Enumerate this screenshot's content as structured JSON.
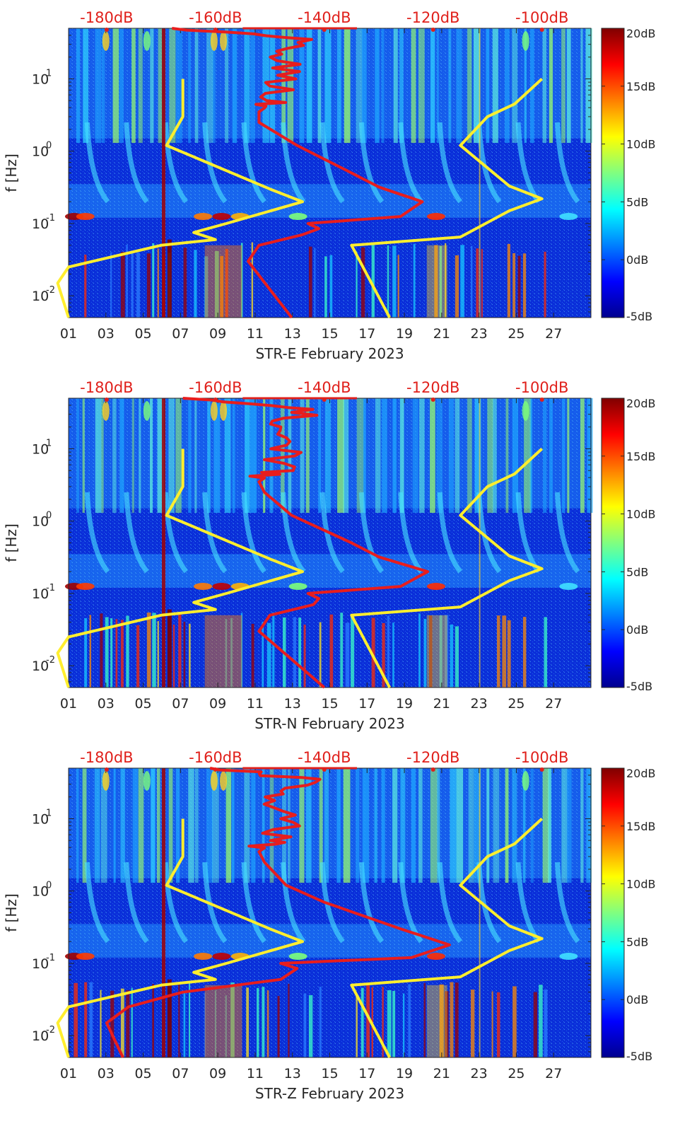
{
  "chart_data": [
    {
      "type": "heatmap",
      "station": "STR-E",
      "xlabel": "STR-E February 2023",
      "ylabel": "f [Hz]",
      "x_ticks": [
        "01",
        "03",
        "05",
        "07",
        "09",
        "11",
        "13",
        "15",
        "17",
        "19",
        "21",
        "23",
        "25",
        "27"
      ],
      "x_range_days": [
        1,
        29
      ],
      "y_scale": "log",
      "y_ticks": [
        {
          "label": "10",
          "exp": "-2",
          "value": 0.01
        },
        {
          "label": "10",
          "exp": "-1",
          "value": 0.1
        },
        {
          "label": "10",
          "exp": "0",
          "value": 1
        },
        {
          "label": "10",
          "exp": "1",
          "value": 10
        }
      ],
      "y_range": [
        0.005,
        50
      ],
      "top_axis": {
        "labels": [
          "-180dB",
          "-160dB",
          "-140dB",
          "-120dB",
          "-100dB"
        ],
        "values": [
          -180,
          -160,
          -140,
          -120,
          -100
        ],
        "range": [
          -187,
          -91
        ]
      },
      "colorbar": {
        "labels": [
          "20dB",
          "15dB",
          "10dB",
          "5dB",
          "0dB",
          "-5dB"
        ],
        "range": [
          -5,
          20
        ]
      },
      "noise_models": {
        "low_db": [
          [
            -187,
            0.005
          ],
          [
            -189,
            0.015
          ],
          [
            -187,
            0.025
          ],
          [
            -170,
            0.05
          ],
          [
            -160,
            0.06
          ],
          [
            -164,
            0.075
          ],
          [
            -158,
            0.1
          ],
          [
            -144,
            0.2
          ],
          [
            -150,
            0.3
          ],
          [
            -169,
            1.2
          ],
          [
            -166,
            3.0
          ],
          [
            -166,
            10
          ]
        ],
        "high_db": [
          [
            -128,
            0.005
          ],
          [
            -135,
            0.05
          ],
          [
            -115,
            0.065
          ],
          [
            -106,
            0.15
          ],
          [
            -100,
            0.22
          ],
          [
            -106,
            0.33
          ],
          [
            -115,
            1.2
          ],
          [
            -110,
            3.0
          ],
          [
            -105,
            4.5
          ],
          [
            -100,
            10
          ]
        ]
      },
      "median_psd_db": [
        [
          -146,
          0.005
        ],
        [
          -154,
          0.03
        ],
        [
          -152,
          0.05
        ],
        [
          -144,
          0.07
        ],
        [
          -141,
          0.085
        ],
        [
          -143,
          0.1
        ],
        [
          -126,
          0.125
        ],
        [
          -122,
          0.2
        ],
        [
          -130,
          0.32
        ],
        [
          -135,
          0.5
        ],
        [
          -145,
          1.2
        ],
        [
          -152,
          2.5
        ],
        [
          -152,
          3.5
        ],
        [
          -149,
          5
        ],
        [
          -147,
          10
        ],
        [
          -148,
          20
        ],
        [
          -144,
          35
        ],
        [
          -168,
          50
        ]
      ]
    },
    {
      "type": "heatmap",
      "station": "STR-N",
      "xlabel": "STR-N February 2023",
      "ylabel": "f [Hz]",
      "x_ticks": [
        "01",
        "03",
        "05",
        "07",
        "09",
        "11",
        "13",
        "15",
        "17",
        "19",
        "21",
        "23",
        "25",
        "27"
      ],
      "x_range_days": [
        1,
        29
      ],
      "y_scale": "log",
      "y_ticks": [
        {
          "label": "10",
          "exp": "-2",
          "value": 0.01
        },
        {
          "label": "10",
          "exp": "-1",
          "value": 0.1
        },
        {
          "label": "10",
          "exp": "0",
          "value": 1
        },
        {
          "label": "10",
          "exp": "1",
          "value": 10
        }
      ],
      "y_range": [
        0.005,
        50
      ],
      "top_axis": {
        "labels": [
          "-180dB",
          "-160dB",
          "-140dB",
          "-120dB",
          "-100dB"
        ],
        "values": [
          -180,
          -160,
          -140,
          -120,
          -100
        ],
        "range": [
          -187,
          -91
        ]
      },
      "colorbar": {
        "labels": [
          "20dB",
          "15dB",
          "10dB",
          "5dB",
          "0dB",
          "-5dB"
        ],
        "range": [
          -5,
          20
        ]
      },
      "noise_models": {
        "low_db": [
          [
            -187,
            0.005
          ],
          [
            -189,
            0.015
          ],
          [
            -187,
            0.025
          ],
          [
            -170,
            0.05
          ],
          [
            -160,
            0.06
          ],
          [
            -164,
            0.075
          ],
          [
            -158,
            0.1
          ],
          [
            -144,
            0.2
          ],
          [
            -150,
            0.3
          ],
          [
            -169,
            1.2
          ],
          [
            -166,
            3.0
          ],
          [
            -166,
            10
          ]
        ],
        "high_db": [
          [
            -128,
            0.005
          ],
          [
            -135,
            0.05
          ],
          [
            -115,
            0.065
          ],
          [
            -106,
            0.15
          ],
          [
            -100,
            0.22
          ],
          [
            -106,
            0.33
          ],
          [
            -115,
            1.2
          ],
          [
            -110,
            3.0
          ],
          [
            -105,
            4.5
          ],
          [
            -100,
            10
          ]
        ]
      },
      "median_psd_db": [
        [
          -140,
          0.005
        ],
        [
          -152,
          0.03
        ],
        [
          -150,
          0.05
        ],
        [
          -142,
          0.07
        ],
        [
          -141,
          0.085
        ],
        [
          -143,
          0.1
        ],
        [
          -126,
          0.125
        ],
        [
          -121,
          0.2
        ],
        [
          -130,
          0.32
        ],
        [
          -135,
          0.5
        ],
        [
          -146,
          1.2
        ],
        [
          -151,
          2.5
        ],
        [
          -152,
          3.5
        ],
        [
          -149,
          5
        ],
        [
          -147,
          10
        ],
        [
          -148,
          20
        ],
        [
          -143,
          35
        ],
        [
          -166,
          50
        ]
      ]
    },
    {
      "type": "heatmap",
      "station": "STR-Z",
      "xlabel": "STR-Z February 2023",
      "ylabel": "f [Hz]",
      "x_ticks": [
        "01",
        "03",
        "05",
        "07",
        "09",
        "11",
        "13",
        "15",
        "17",
        "19",
        "21",
        "23",
        "25",
        "27"
      ],
      "x_range_days": [
        1,
        29
      ],
      "y_scale": "log",
      "y_ticks": [
        {
          "label": "10",
          "exp": "-2",
          "value": 0.01
        },
        {
          "label": "10",
          "exp": "-1",
          "value": 0.1
        },
        {
          "label": "10",
          "exp": "0",
          "value": 1
        },
        {
          "label": "10",
          "exp": "1",
          "value": 10
        }
      ],
      "y_range": [
        0.005,
        50
      ],
      "top_axis": {
        "labels": [
          "-180dB",
          "-160dB",
          "-140dB",
          "-120dB",
          "-100dB"
        ],
        "values": [
          -180,
          -160,
          -140,
          -120,
          -100
        ],
        "range": [
          -187,
          -91
        ]
      },
      "colorbar": {
        "labels": [
          "20dB",
          "15dB",
          "10dB",
          "5dB",
          "0dB",
          "-5dB"
        ],
        "range": [
          -5,
          20
        ]
      },
      "noise_models": {
        "low_db": [
          [
            -187,
            0.005
          ],
          [
            -189,
            0.015
          ],
          [
            -187,
            0.025
          ],
          [
            -170,
            0.05
          ],
          [
            -160,
            0.06
          ],
          [
            -164,
            0.075
          ],
          [
            -158,
            0.1
          ],
          [
            -144,
            0.2
          ],
          [
            -150,
            0.3
          ],
          [
            -169,
            1.2
          ],
          [
            -166,
            3.0
          ],
          [
            -166,
            10
          ]
        ],
        "high_db": [
          [
            -128,
            0.005
          ],
          [
            -135,
            0.05
          ],
          [
            -115,
            0.065
          ],
          [
            -106,
            0.15
          ],
          [
            -100,
            0.22
          ],
          [
            -106,
            0.33
          ],
          [
            -115,
            1.2
          ],
          [
            -110,
            3.0
          ],
          [
            -105,
            4.5
          ],
          [
            -100,
            10
          ]
        ]
      },
      "median_psd_db": [
        [
          -177,
          0.005
        ],
        [
          -180,
          0.015
        ],
        [
          -176,
          0.025
        ],
        [
          -166,
          0.04
        ],
        [
          -148,
          0.06
        ],
        [
          -145,
          0.085
        ],
        [
          -148,
          0.1
        ],
        [
          -124,
          0.12
        ],
        [
          -117,
          0.18
        ],
        [
          -126,
          0.3
        ],
        [
          -140,
          0.7
        ],
        [
          -147,
          1.2
        ],
        [
          -151,
          2.5
        ],
        [
          -152,
          3.5
        ],
        [
          -149,
          5
        ],
        [
          -147,
          10
        ],
        [
          -148,
          20
        ],
        [
          -143,
          35
        ],
        [
          -161,
          50
        ]
      ]
    }
  ]
}
